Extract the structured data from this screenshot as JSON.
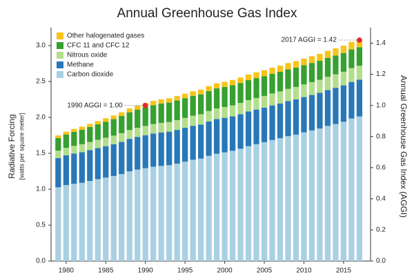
{
  "chart_data": {
    "type": "stacked_bar",
    "title": "Annual Greenhouse Gas Index",
    "y_label": "Radiative Forcing",
    "y_sublabel": "[watts per square meter]",
    "y2_label": "Annual Greenhouse Gas Index (AGGI)",
    "x": [
      1979,
      1980,
      1981,
      1982,
      1983,
      1984,
      1985,
      1986,
      1987,
      1988,
      1989,
      1990,
      1991,
      1992,
      1993,
      1994,
      1995,
      1996,
      1997,
      1998,
      1999,
      2000,
      2001,
      2002,
      2003,
      2004,
      2005,
      2006,
      2007,
      2008,
      2009,
      2010,
      2011,
      2012,
      2013,
      2014,
      2015,
      2016,
      2017
    ],
    "xlim": [
      1978.1,
      2018.4
    ],
    "xticks": [
      1980,
      1985,
      1990,
      1995,
      2000,
      2005,
      2010,
      2015
    ],
    "ylim": [
      0,
      3.25
    ],
    "yticks": [
      {
        "value": 0,
        "label": "0.0"
      },
      {
        "value": 0.5,
        "label": "0.5"
      },
      {
        "value": 1,
        "label": "1.0"
      },
      {
        "value": 1.5,
        "label": "1.5"
      },
      {
        "value": 2,
        "label": "2.0"
      },
      {
        "value": 2.5,
        "label": "2.5"
      },
      {
        "value": 3,
        "label": "3.0"
      }
    ],
    "y2lim": [
      0,
      1.5
    ],
    "y2ticks": [
      {
        "value": 0,
        "label": "0.0"
      },
      {
        "value": 0.2,
        "label": "0.2"
      },
      {
        "value": 0.4,
        "label": "0.4"
      },
      {
        "value": 0.6,
        "label": "0.6"
      },
      {
        "value": 0.8,
        "label": "0.8"
      },
      {
        "value": 1,
        "label": "1.0"
      },
      {
        "value": 1.2,
        "label": "1.2"
      },
      {
        "value": 1.4,
        "label": "1.4"
      }
    ],
    "legend": "upper left",
    "series": [
      {
        "name": "Carbon dioxide",
        "color": "#a9d0e2",
        "values": [
          1.027,
          1.058,
          1.077,
          1.089,
          1.115,
          1.14,
          1.162,
          1.184,
          1.211,
          1.25,
          1.274,
          1.293,
          1.313,
          1.324,
          1.334,
          1.356,
          1.383,
          1.41,
          1.426,
          1.465,
          1.495,
          1.513,
          1.535,
          1.564,
          1.6,
          1.627,
          1.655,
          1.685,
          1.71,
          1.739,
          1.76,
          1.791,
          1.818,
          1.846,
          1.882,
          1.908,
          1.939,
          1.985,
          2.013
        ]
      },
      {
        "name": "Methane",
        "color": "#2878b8",
        "values": [
          0.406,
          0.413,
          0.42,
          0.426,
          0.429,
          0.432,
          0.437,
          0.442,
          0.447,
          0.451,
          0.455,
          0.459,
          0.463,
          0.467,
          0.467,
          0.47,
          0.472,
          0.473,
          0.474,
          0.478,
          0.481,
          0.481,
          0.48,
          0.481,
          0.483,
          0.482,
          0.481,
          0.482,
          0.484,
          0.487,
          0.49,
          0.492,
          0.494,
          0.496,
          0.499,
          0.504,
          0.507,
          0.509,
          0.511
        ]
      },
      {
        "name": "Nitrous oxide",
        "color": "#b3de8c",
        "values": [
          0.104,
          0.104,
          0.107,
          0.111,
          0.113,
          0.116,
          0.118,
          0.12,
          0.122,
          0.123,
          0.126,
          0.129,
          0.131,
          0.133,
          0.134,
          0.136,
          0.138,
          0.141,
          0.144,
          0.146,
          0.149,
          0.151,
          0.153,
          0.156,
          0.158,
          0.161,
          0.163,
          0.166,
          0.168,
          0.171,
          0.174,
          0.176,
          0.179,
          0.182,
          0.184,
          0.187,
          0.19,
          0.193,
          0.195
        ]
      },
      {
        "name": "CFC 11 and CFC 12",
        "color": "#36a030",
        "values": [
          0.176,
          0.187,
          0.195,
          0.202,
          0.209,
          0.216,
          0.223,
          0.231,
          0.239,
          0.247,
          0.254,
          0.26,
          0.264,
          0.268,
          0.271,
          0.273,
          0.275,
          0.276,
          0.277,
          0.278,
          0.279,
          0.279,
          0.279,
          0.278,
          0.278,
          0.277,
          0.276,
          0.275,
          0.273,
          0.272,
          0.27,
          0.268,
          0.267,
          0.265,
          0.264,
          0.262,
          0.261,
          0.259,
          0.258
        ]
      },
      {
        "name": "Other halogenated gases",
        "color": "#f7c41a",
        "values": [
          0.037,
          0.039,
          0.041,
          0.043,
          0.044,
          0.046,
          0.048,
          0.05,
          0.052,
          0.053,
          0.055,
          0.057,
          0.059,
          0.06,
          0.061,
          0.062,
          0.063,
          0.064,
          0.066,
          0.068,
          0.07,
          0.072,
          0.074,
          0.076,
          0.078,
          0.08,
          0.082,
          0.084,
          0.086,
          0.088,
          0.09,
          0.092,
          0.094,
          0.096,
          0.098,
          0.1,
          0.102,
          0.104,
          0.106
        ]
      }
    ],
    "annotations": [
      {
        "text": "1990 AGGI = 1.00",
        "x": 1990,
        "value": 1.0,
        "axis": "y2",
        "color": "#e8262b"
      },
      {
        "text": "2017 AGGI = 1.42",
        "x": 2017,
        "value": 1.42,
        "axis": "y2",
        "color": "#e8262b"
      }
    ]
  }
}
